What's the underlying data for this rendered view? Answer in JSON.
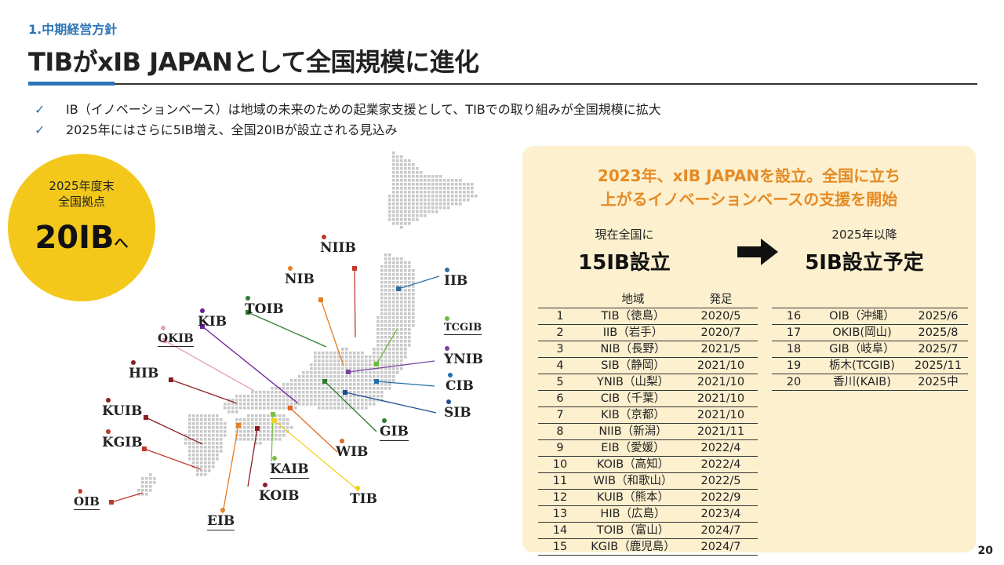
{
  "header": {
    "section": "1.中期経営方針",
    "title": "TIBがxIB JAPANとして全国規模に進化"
  },
  "bullets": [
    "IB（イノベーションベース）は地域の未来のための起業家支援として、TIBでの取り組みが全国規模に拡大",
    "2025年にはさらに5IB増え、全国20IBが設立される見込み"
  ],
  "bullet_icon": "check-icon",
  "badge": {
    "line1": "2025年度末",
    "line2": "全国拠点",
    "value": "20IB",
    "suffix": "へ",
    "color": "#f3c81b"
  },
  "map_labels": {
    "niib": "NIIB",
    "nib": "NIB",
    "iib": "IIB",
    "toib": "TOIB",
    "kib": "KIB",
    "okib": "OKIB",
    "tcgib": "TCGIB",
    "ynib": "YNIB",
    "cib": "CIB",
    "sib": "SIB",
    "hib": "HIB",
    "kuib": "KUIB",
    "gib": "GIB",
    "kgib": "KGIB",
    "wib": "WIB",
    "kaib": "KAIB",
    "koib": "KOIB",
    "tib": "TIB",
    "oib": "OIB",
    "eib": "EIB"
  },
  "panel": {
    "headline1": "2023年、xIB JAPANを設立。全国に立ち",
    "headline2": "上がるイノベーションベースの支援を開始",
    "current_caption": "現在全国に",
    "current_value": "15IB設立",
    "future_caption": "2025年以降",
    "future_value": "5IB設立予定",
    "arrow_icon": "right-arrow-icon",
    "accent_color": "#e58b25",
    "background": "#fcf0cf"
  },
  "table_headers": {
    "region": "地域",
    "founded": "発足"
  },
  "table1": [
    {
      "no": "1",
      "region": "TIB（徳島）",
      "date": "2020/5"
    },
    {
      "no": "2",
      "region": "IIB（岩手）",
      "date": "2020/7"
    },
    {
      "no": "3",
      "region": "NIB（長野）",
      "date": "2021/5"
    },
    {
      "no": "4",
      "region": "SIB（静岡）",
      "date": "2021/10"
    },
    {
      "no": "5",
      "region": "YNIB（山梨）",
      "date": "2021/10"
    },
    {
      "no": "6",
      "region": "CIB（千葉）",
      "date": "2021/10"
    },
    {
      "no": "7",
      "region": "KIB（京都）",
      "date": "2021/10"
    },
    {
      "no": "8",
      "region": "NIIB（新潟）",
      "date": "2021/11"
    },
    {
      "no": "9",
      "region": "EIB（愛媛）",
      "date": "2022/4"
    },
    {
      "no": "10",
      "region": "KOIB（高知）",
      "date": "2022/4"
    },
    {
      "no": "11",
      "region": "WIB（和歌山）",
      "date": "2022/5"
    },
    {
      "no": "12",
      "region": "KUIB（熊本）",
      "date": "2022/9"
    },
    {
      "no": "13",
      "region": "HIB（広島）",
      "date": "2023/4"
    },
    {
      "no": "14",
      "region": "TOIB（富山）",
      "date": "2024/7"
    },
    {
      "no": "15",
      "region": "KGIB（鹿児島）",
      "date": "2024/7"
    }
  ],
  "table2": [
    {
      "no": "16",
      "region": "OIB（沖縄）",
      "date": "2025/6"
    },
    {
      "no": "17",
      "region": "OKIB(岡山)",
      "date": "2025/8"
    },
    {
      "no": "18",
      "region": "GIB（岐阜）",
      "date": "2025/7"
    },
    {
      "no": "19",
      "region": "栃木(TCGIB)",
      "date": "2025/11"
    },
    {
      "no": "20",
      "region": "香川(KAIB)",
      "date": "2025中"
    }
  ],
  "page_number": "20"
}
